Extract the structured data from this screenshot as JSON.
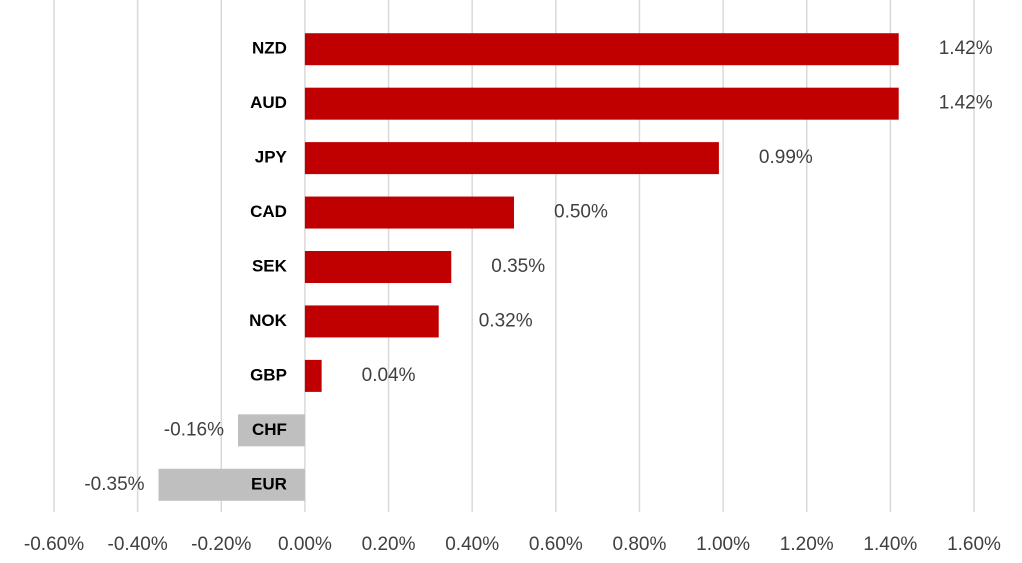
{
  "chart_data": {
    "type": "bar",
    "orientation": "horizontal",
    "categories": [
      "NZD",
      "AUD",
      "JPY",
      "CAD",
      "SEK",
      "NOK",
      "GBP",
      "CHF",
      "EUR"
    ],
    "values": [
      1.42,
      1.42,
      0.99,
      0.5,
      0.35,
      0.32,
      0.04,
      -0.16,
      -0.35
    ],
    "value_labels": [
      "1.42%",
      "1.42%",
      "0.99%",
      "0.50%",
      "0.35%",
      "0.32%",
      "0.04%",
      "-0.16%",
      "-0.35%"
    ],
    "colors": [
      "#c00000",
      "#c00000",
      "#c00000",
      "#c00000",
      "#c00000",
      "#c00000",
      "#c00000",
      "#bfbfbf",
      "#bfbfbf"
    ],
    "xlim": [
      -0.6,
      1.6
    ],
    "xticks": [
      {
        "value": -0.6,
        "label": "-0.60%"
      },
      {
        "value": -0.4,
        "label": "-0.40%"
      },
      {
        "value": -0.2,
        "label": "-0.20%"
      },
      {
        "value": 0,
        "label": "0.00%"
      },
      {
        "value": 0.2,
        "label": "0.20%"
      },
      {
        "value": 0.4,
        "label": "0.40%"
      },
      {
        "value": 0.6,
        "label": "0.60%"
      },
      {
        "value": 0.8,
        "label": "0.80%"
      },
      {
        "value": 1.0,
        "label": "1.00%"
      },
      {
        "value": 1.2,
        "label": "1.20%"
      },
      {
        "value": 1.4,
        "label": "1.40%"
      },
      {
        "value": 1.6,
        "label": "1.60%"
      }
    ],
    "grid": true
  }
}
